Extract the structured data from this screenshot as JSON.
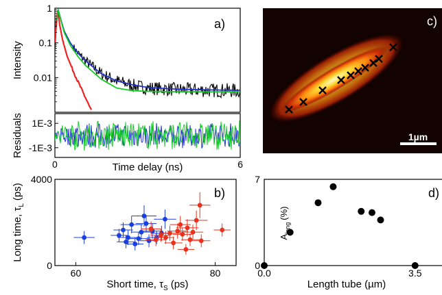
{
  "chart_data": [
    {
      "panel": "a)",
      "type": "line",
      "xlabel": "Time delay (ns)",
      "ylabel": "Intensity",
      "yscale": "log",
      "xlim": [
        0,
        6
      ],
      "ylim": [
        0.001,
        1
      ],
      "x_ticks": [
        "0",
        "6"
      ],
      "y_ticks": [
        "1",
        "0.1",
        "0.01"
      ],
      "colors": {
        "data": "#000000",
        "irf": "#ee2222",
        "fit_blue": "#2233cc",
        "fit_green": "#11cc22"
      },
      "series": [
        {
          "color": "#000000",
          "x": [
            0.0,
            0.05,
            0.1,
            0.2,
            0.3,
            0.5,
            0.75,
            1.0,
            1.5,
            2.0,
            2.5,
            3.0,
            4.0,
            5.0,
            6.0
          ],
          "y": [
            0.06,
            0.3,
            0.95,
            0.45,
            0.22,
            0.1,
            0.05,
            0.03,
            0.013,
            0.008,
            0.006,
            0.005,
            0.0045,
            0.0043,
            0.0042
          ]
        },
        {
          "color": "#ee2222",
          "x": [
            0.0,
            0.05,
            0.1,
            0.15,
            0.25,
            0.4,
            0.6,
            0.8,
            1.0,
            1.2
          ],
          "y": [
            0.1,
            0.5,
            0.9,
            0.35,
            0.12,
            0.04,
            0.015,
            0.006,
            0.0025,
            0.001
          ]
        },
        {
          "color": "#2233cc",
          "x": [
            0.05,
            0.1,
            0.2,
            0.3,
            0.5,
            0.75,
            1.0,
            1.5,
            2.0,
            2.5,
            3.0,
            4.0,
            5.0,
            6.0
          ],
          "y": [
            0.3,
            0.95,
            0.45,
            0.22,
            0.1,
            0.05,
            0.03,
            0.013,
            0.008,
            0.0062,
            0.0052,
            0.0046,
            0.0044,
            0.0043
          ]
        },
        {
          "color": "#11cc22",
          "x": [
            0.05,
            0.1,
            0.2,
            0.3,
            0.5,
            0.75,
            1.0,
            1.5,
            2.0,
            2.5,
            3.0,
            4.0,
            5.0,
            6.0
          ],
          "y": [
            0.3,
            0.95,
            0.43,
            0.2,
            0.085,
            0.04,
            0.022,
            0.009,
            0.005,
            0.0042,
            0.004,
            0.0039,
            0.0039,
            0.0039
          ]
        }
      ]
    },
    {
      "panel": "a) residuals",
      "type": "line",
      "ylabel": "Residuals",
      "y_ticks": [
        "1E-3",
        "-1E-3"
      ],
      "ylim": [
        -0.0018,
        0.0018
      ],
      "xlim": [
        0,
        6
      ]
    },
    {
      "panel": "c)",
      "type": "heatmap",
      "scale_label": "1µm",
      "marker": "×",
      "marker_count": 10
    },
    {
      "panel": "b)",
      "type": "scatter",
      "xlabel": "Short time, τ",
      "xlabel_sub": "S",
      "xlabel_unit": "(ps)",
      "ylabel": "Long time, τ",
      "ylabel_sub": "L",
      "ylabel_unit": "(ps)",
      "xlim": [
        57,
        83
      ],
      "ylim": [
        0,
        4000
      ],
      "x_ticks": [
        "60",
        "80"
      ],
      "y_ticks": [
        "4000",
        "0"
      ],
      "series": [
        {
          "color": "#1a3fe0",
          "points": [
            {
              "x": 61.2,
              "y": 1300,
              "xe": 1.5,
              "ye": 300
            },
            {
              "x": 66.2,
              "y": 1400,
              "xe": 1.2,
              "ye": 300
            },
            {
              "x": 66.8,
              "y": 1650,
              "xe": 1.4,
              "ye": 350
            },
            {
              "x": 67.2,
              "y": 1100,
              "xe": 1.3,
              "ye": 300
            },
            {
              "x": 67.5,
              "y": 1300,
              "xe": 1.5,
              "ye": 350
            },
            {
              "x": 68.0,
              "y": 1900,
              "xe": 1.6,
              "ye": 400
            },
            {
              "x": 68.5,
              "y": 1000,
              "xe": 1.2,
              "ye": 300
            },
            {
              "x": 69.0,
              "y": 1250,
              "xe": 1.4,
              "ye": 300
            },
            {
              "x": 69.4,
              "y": 1550,
              "xe": 1.5,
              "ye": 350
            },
            {
              "x": 69.8,
              "y": 2300,
              "xe": 1.8,
              "ye": 500
            },
            {
              "x": 70.1,
              "y": 1950,
              "xe": 1.5,
              "ye": 400
            },
            {
              "x": 70.5,
              "y": 1150,
              "xe": 1.3,
              "ye": 300
            },
            {
              "x": 71.0,
              "y": 1600,
              "xe": 1.5,
              "ye": 350
            },
            {
              "x": 71.6,
              "y": 1300,
              "xe": 1.4,
              "ye": 300
            },
            {
              "x": 72.3,
              "y": 1500,
              "xe": 1.5,
              "ye": 350
            },
            {
              "x": 72.8,
              "y": 2150,
              "xe": 1.6,
              "ye": 450
            }
          ]
        },
        {
          "color": "#e8321e",
          "points": [
            {
              "x": 70.8,
              "y": 1700,
              "xe": 1.4,
              "ye": 350
            },
            {
              "x": 71.5,
              "y": 1200,
              "xe": 1.5,
              "ye": 300
            },
            {
              "x": 72.2,
              "y": 1400,
              "xe": 1.3,
              "ye": 300
            },
            {
              "x": 72.9,
              "y": 1300,
              "xe": 1.2,
              "ye": 300
            },
            {
              "x": 73.5,
              "y": 1500,
              "xe": 1.5,
              "ye": 350
            },
            {
              "x": 74.0,
              "y": 1050,
              "xe": 1.3,
              "ye": 300
            },
            {
              "x": 74.6,
              "y": 1600,
              "xe": 1.5,
              "ye": 350
            },
            {
              "x": 75.0,
              "y": 1900,
              "xe": 1.5,
              "ye": 400
            },
            {
              "x": 75.3,
              "y": 1450,
              "xe": 1.4,
              "ye": 300
            },
            {
              "x": 75.8,
              "y": 750,
              "xe": 1.2,
              "ye": 250
            },
            {
              "x": 76.0,
              "y": 1750,
              "xe": 1.6,
              "ye": 400
            },
            {
              "x": 76.4,
              "y": 1200,
              "xe": 1.3,
              "ye": 300
            },
            {
              "x": 76.8,
              "y": 1550,
              "xe": 1.5,
              "ye": 350
            },
            {
              "x": 77.3,
              "y": 2100,
              "xe": 1.6,
              "ye": 450
            },
            {
              "x": 78.0,
              "y": 1150,
              "xe": 1.3,
              "ye": 300
            },
            {
              "x": 77.8,
              "y": 2800,
              "xe": 1.5,
              "ye": 600
            },
            {
              "x": 81.0,
              "y": 1650,
              "xe": 1.2,
              "ye": 300
            }
          ]
        }
      ]
    },
    {
      "panel": "d)",
      "type": "scatter",
      "xlabel": "Length tube (µm)",
      "ylabel": "A",
      "ylabel_sub": "long",
      "ylabel_unit": "(%)",
      "xlim": [
        0,
        4.3
      ],
      "ylim": [
        0,
        7
      ],
      "x_ticks": [
        "0.0",
        "3.5"
      ],
      "y_ticks": [
        "7",
        "0"
      ],
      "x": [
        0.0,
        0.6,
        1.25,
        1.6,
        2.25,
        2.5,
        2.7,
        3.5
      ],
      "y": [
        0.0,
        2.7,
        5.1,
        6.4,
        4.4,
        4.3,
        3.7,
        0.0
      ]
    }
  ]
}
